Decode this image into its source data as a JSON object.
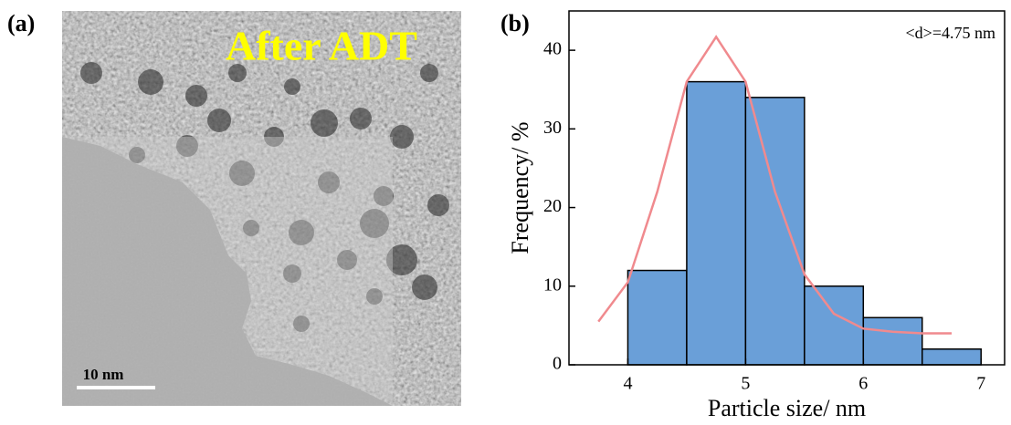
{
  "panels": {
    "a": "(a)",
    "b": "(b)"
  },
  "image_a": {
    "overlay_text": "After ADT",
    "scale_bar": "10 nm"
  },
  "chart_data": {
    "type": "histogram",
    "xlabel": "Particle size/ nm",
    "ylabel": "Frequency/ %",
    "annotation": "<d>=4.75 nm",
    "bins": [
      4,
      4.5,
      5,
      5.5,
      6,
      6.5,
      7
    ],
    "values": [
      12,
      36,
      34,
      10,
      6,
      2
    ],
    "color": "#6a9fd8",
    "fit_line": {
      "color": "#f08a8e",
      "x": [
        3.75,
        4,
        4.25,
        4.5,
        4.75,
        5,
        5.25,
        5.5,
        5.75,
        6,
        6.25,
        6.5,
        6.75
      ],
      "values": [
        5.5,
        10.5,
        22,
        36,
        41.7,
        36,
        22,
        11.5,
        6.5,
        4.6,
        4.2,
        4,
        4
      ]
    },
    "xlim": [
      3.5,
      7.2
    ],
    "ylim": [
      0,
      45
    ],
    "xticks": [
      4,
      5,
      6,
      7
    ],
    "yticks": [
      0,
      10,
      20,
      30,
      40
    ]
  }
}
